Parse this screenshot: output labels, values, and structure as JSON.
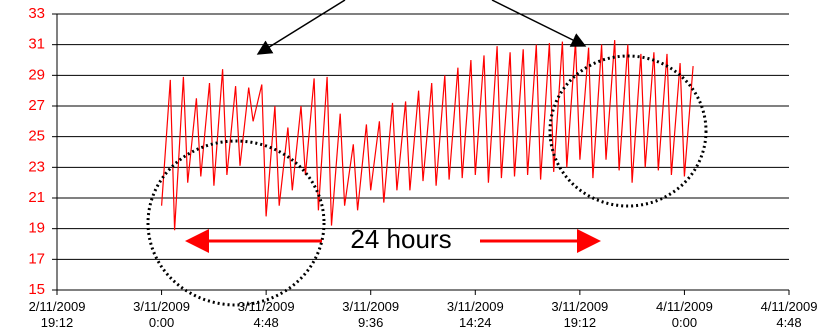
{
  "chart_data": {
    "type": "line",
    "color": "#ff0000",
    "x": [
      "3/11/2009 0:00",
      "3/11/2009 0:24",
      "3/11/2009 0:36",
      "3/11/2009 1:00",
      "3/11/2009 1:12",
      "3/11/2009 1:36",
      "3/11/2009 1:48",
      "3/11/2009 2:12",
      "3/11/2009 2:24",
      "3/11/2009 2:48",
      "3/11/2009 3:00",
      "3/11/2009 3:24",
      "3/11/2009 3:36",
      "3/11/2009 4:00",
      "3/11/2009 4:12",
      "3/11/2009 4:36",
      "3/11/2009 4:48",
      "3/11/2009 5:12",
      "3/11/2009 5:24",
      "3/11/2009 5:48",
      "3/11/2009 6:00",
      "3/11/2009 6:24",
      "3/11/2009 6:36",
      "3/11/2009 7:00",
      "3/11/2009 7:12",
      "3/11/2009 7:36",
      "3/11/2009 7:48",
      "3/11/2009 8:12",
      "3/11/2009 8:24",
      "3/11/2009 8:48",
      "3/11/2009 9:00",
      "3/11/2009 9:24",
      "3/11/2009 9:36",
      "3/11/2009 10:00",
      "3/11/2009 10:12",
      "3/11/2009 10:36",
      "3/11/2009 10:48",
      "3/11/2009 11:12",
      "3/11/2009 11:24",
      "3/11/2009 11:48",
      "3/11/2009 12:00",
      "3/11/2009 12:24",
      "3/11/2009 12:36",
      "3/11/2009 13:00",
      "3/11/2009 13:12",
      "3/11/2009 13:36",
      "3/11/2009 13:48",
      "3/11/2009 14:12",
      "3/11/2009 14:24",
      "3/11/2009 14:48",
      "3/11/2009 15:00",
      "3/11/2009 15:24",
      "3/11/2009 15:36",
      "3/11/2009 16:00",
      "3/11/2009 16:12",
      "3/11/2009 16:36",
      "3/11/2009 16:48",
      "3/11/2009 17:12",
      "3/11/2009 17:24",
      "3/11/2009 17:48",
      "3/11/2009 18:00",
      "3/11/2009 18:24",
      "3/11/2009 18:36",
      "3/11/2009 19:00",
      "3/11/2009 19:12",
      "3/11/2009 19:36",
      "3/11/2009 19:48",
      "3/11/2009 20:12",
      "3/11/2009 20:24",
      "3/11/2009 20:48",
      "3/11/2009 21:00",
      "3/11/2009 21:24",
      "3/11/2009 21:36",
      "3/11/2009 22:00",
      "3/11/2009 22:12",
      "3/11/2009 22:36",
      "3/11/2009 22:48",
      "3/11/2009 23:12",
      "3/11/2009 23:24",
      "3/11/2009 23:48",
      "4/11/2009 0:00",
      "4/11/2009 0:24"
    ],
    "values": [
      20.5,
      28.7,
      18.9,
      28.9,
      22.0,
      27.5,
      22.4,
      28.5,
      21.8,
      29.4,
      22.5,
      28.3,
      23.1,
      28.2,
      26.0,
      28.4,
      19.8,
      27.0,
      20.5,
      25.6,
      21.5,
      27.0,
      22.5,
      28.8,
      20.2,
      28.9,
      19.2,
      26.5,
      20.5,
      24.5,
      20.2,
      25.8,
      21.5,
      26.0,
      20.7,
      27.2,
      21.5,
      27.3,
      21.5,
      28.0,
      22.1,
      28.5,
      21.8,
      29.0,
      22.2,
      29.5,
      22.3,
      30.0,
      22.5,
      30.3,
      22.0,
      30.9,
      22.3,
      30.5,
      22.4,
      30.7,
      22.5,
      31.0,
      22.2,
      31.1,
      22.7,
      31.2,
      23.0,
      31.2,
      23.5,
      30.8,
      22.3,
      31.0,
      23.5,
      31.3,
      22.8,
      31.0,
      22.0,
      30.4,
      23.0,
      30.5,
      22.8,
      30.4,
      22.5,
      29.8,
      22.4,
      29.6
    ],
    "xlim": [
      "2/11/2009 19:12",
      "4/11/2009 4:48"
    ],
    "xticks": [
      "2/11/2009 19:12",
      "3/11/2009 0:00",
      "3/11/2009 4:48",
      "3/11/2009 9:36",
      "3/11/2009 14:24",
      "3/11/2009 19:12",
      "4/11/2009 0:00",
      "4/11/2009 4:48"
    ],
    "ylim": [
      15,
      33
    ],
    "yticks": [
      15,
      17,
      19,
      21,
      23,
      25,
      27,
      29,
      31,
      33
    ],
    "grid": true,
    "annotation": "24 hours"
  }
}
